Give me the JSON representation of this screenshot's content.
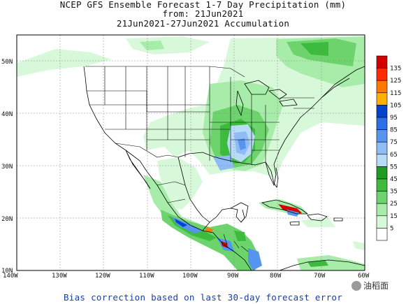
{
  "title": {
    "line1": "NCEP GFS Ensemble Forecast 1-7 Day Precipitation (mm)",
    "line2": "from: 21Jun2021",
    "line3": "21Jun2021-27Jun2021 Accumulation"
  },
  "caption": "Bias correction based on last 30-day forecast error",
  "watermark": "油稻面",
  "lon_labels": [
    "140W",
    "130W",
    "120W",
    "110W",
    "100W",
    "90W",
    "80W",
    "70W",
    "60W"
  ],
  "lat_labels": [
    "10N",
    "20N",
    "30N",
    "40N",
    "50N"
  ],
  "colorbar": {
    "labels": [
      "135",
      "125",
      "115",
      "105",
      "95",
      "85",
      "75",
      "65",
      "55",
      "45",
      "35",
      "25",
      "15",
      "5"
    ],
    "colors": [
      "#d20000",
      "#ff2a00",
      "#ff7800",
      "#ffb000",
      "#0044cc",
      "#2b70e6",
      "#5595f0",
      "#8fbcf5",
      "#b8dcf8",
      "#1f9c1f",
      "#3dbb3d",
      "#6dd46d",
      "#a8ecaa",
      "#d8f8da",
      "#ffffff"
    ]
  },
  "colors": {
    "land": "#ffffff",
    "ocean": "#ffffff",
    "border": "#000000"
  }
}
